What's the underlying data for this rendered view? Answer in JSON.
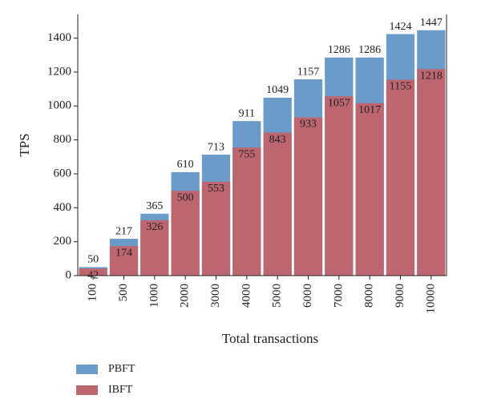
{
  "chart_data": {
    "type": "bar",
    "x_label": "Total transactions",
    "y_label": "TPS",
    "categories": [
      "100",
      "500",
      "1000",
      "2000",
      "3000",
      "4000",
      "5000",
      "6000",
      "7000",
      "8000",
      "9000",
      "10000"
    ],
    "series": [
      {
        "name": "PBFT",
        "color": "#6a9bc9",
        "values": [
          50,
          217,
          365,
          610,
          713,
          911,
          1049,
          1157,
          1286,
          1286,
          1424,
          1447
        ]
      },
      {
        "name": "IBFT",
        "color": "#bd6670",
        "values": [
          42,
          174,
          326,
          500,
          553,
          755,
          843,
          933,
          1057,
          1017,
          1155,
          1218
        ]
      }
    ],
    "ylim": [
      0,
      1540
    ],
    "yticks": [
      0,
      200,
      400,
      600,
      800,
      1000,
      1200,
      1400
    ],
    "legend": "bottom-left"
  }
}
